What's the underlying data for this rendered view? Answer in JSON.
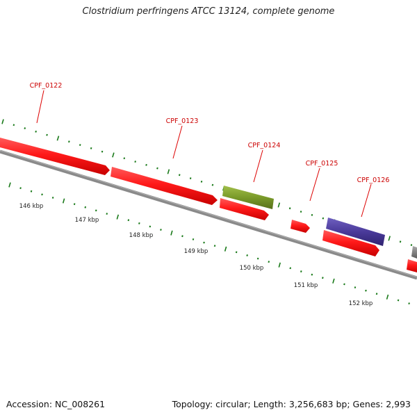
{
  "title": "Clostridium perfringens ATCC 13124, complete genome",
  "footer": {
    "accession": "Accession: NC_008261",
    "summary": "Topology: circular; Length: 3,256,683 bp; Genes: 2,993"
  },
  "colors": {
    "cds_red": "#ff1a1a",
    "cds_olive": "#7a9a2a",
    "cds_purple": "#4a3a9a",
    "label_red": "#cc0000",
    "backbone": "#7a7a7a",
    "tick_green": "#1a7a1a"
  },
  "genes": [
    {
      "id": "CPF_0122",
      "label": "CPF_0122"
    },
    {
      "id": "CPF_0123",
      "label": "CPF_0123"
    },
    {
      "id": "CPF_0124",
      "label": "CPF_0124"
    },
    {
      "id": "CPF_0125",
      "label": "CPF_0125"
    },
    {
      "id": "CPF_0126",
      "label": "CPF_0126"
    }
  ],
  "scale_labels": [
    "146 kbp",
    "147 kbp",
    "148 kbp",
    "149 kbp",
    "150 kbp",
    "151 kbp",
    "152 kbp"
  ]
}
